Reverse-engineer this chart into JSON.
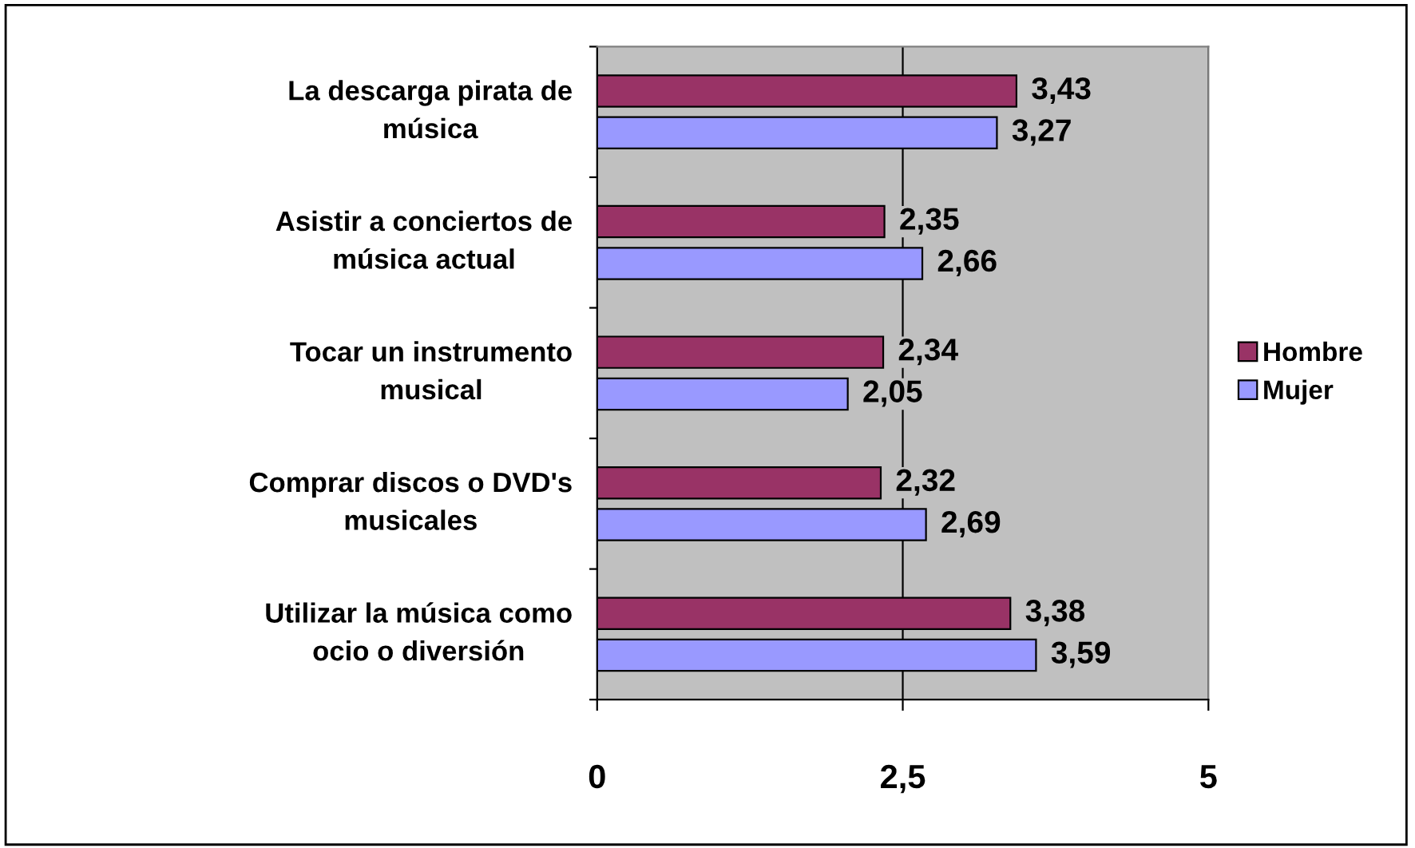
{
  "chart_data": {
    "type": "bar",
    "orientation": "horizontal",
    "categories": [
      "La descarga pirata de\nmúsica",
      "Asistir a conciertos de\nmúsica actual",
      "Tocar un instrumento\nmusical",
      "Comprar discos o DVD's\nmusicales",
      "Utilizar la música como\nocio o diversión"
    ],
    "series": [
      {
        "name": "Hombre",
        "color": "#993366",
        "values": [
          3.43,
          2.35,
          2.34,
          2.32,
          3.38
        ],
        "value_labels": [
          "3,43",
          "2,35",
          "2,34",
          "2,32",
          "3,38"
        ]
      },
      {
        "name": "Mujer",
        "color": "#9999ff",
        "values": [
          3.27,
          2.66,
          2.05,
          2.69,
          3.59
        ],
        "value_labels": [
          "3,27",
          "2,66",
          "2,05",
          "2,69",
          "3,59"
        ]
      }
    ],
    "xlim": [
      0,
      5
    ],
    "xticks": [
      0,
      {
        "value": 2.5,
        "label": "2,5"
      },
      5
    ],
    "grid": "x",
    "legend": "right"
  }
}
